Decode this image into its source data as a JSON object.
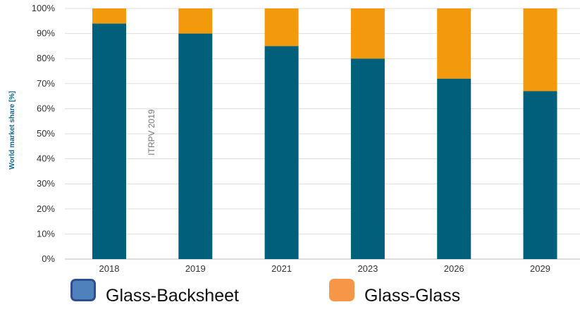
{
  "chart_data": {
    "type": "bar",
    "stacked": true,
    "categories": [
      "2018",
      "2019",
      "2021",
      "2023",
      "2026",
      "2029"
    ],
    "series": [
      {
        "name": "Glass-Backsheet",
        "values": [
          94,
          90,
          85,
          80,
          72,
          67
        ]
      },
      {
        "name": "Glass-Glass",
        "values": [
          6,
          10,
          15,
          20,
          28,
          33
        ]
      }
    ],
    "ylabel": "World market share [%]",
    "ylim": [
      0,
      100
    ],
    "yticks": [
      "0%",
      "10%",
      "20%",
      "30%",
      "40%",
      "50%",
      "60%",
      "70%",
      "80%",
      "90%",
      "100%"
    ],
    "grid": true,
    "legend": "bottom",
    "annotation": "ITRPV 2019",
    "colors": {
      "bar_backsheet": "#00607c",
      "bar_glass": "#f29a0c",
      "legend_backsheet_fill": "#4f81bd",
      "legend_backsheet_border": "#2f4f8a",
      "legend_glass_fill": "#f79646"
    }
  }
}
